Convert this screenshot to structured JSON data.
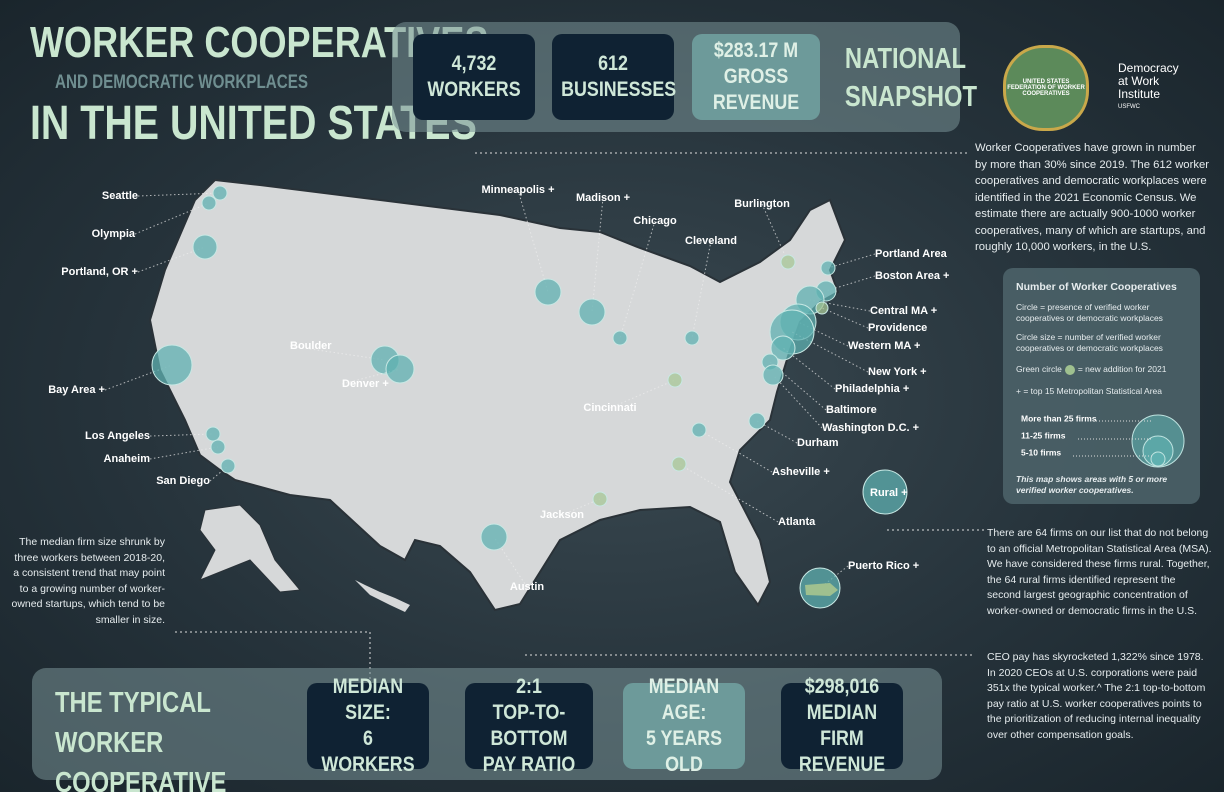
{
  "title": {
    "line1": "WORKER COOPERATIVES",
    "line2": "AND DEMOCRATIC WORKPLACES",
    "line3": "IN THE UNITED STATES"
  },
  "national_snapshot": {
    "stats": [
      {
        "value": "4,732",
        "label": "WORKERS"
      },
      {
        "value": "612",
        "label": "BUSINESSES"
      },
      {
        "value": "$283.17 M",
        "label": "GROSS REVENUE"
      }
    ],
    "heading": "NATIONAL SNAPSHOT"
  },
  "logos": {
    "federation": "UNITED STATES FEDERATION OF WORKER COOPERATIVES",
    "institute": "Democracy at Work Institute",
    "institute_sub": "USFWC"
  },
  "intro_text": "Worker Cooperatives have grown in number by more than 30% since 2019. The 612 worker cooperatives and democratic workplaces were identified in the 2021 Economic Census. We estimate there are actually 900-1000 worker cooperatives, many of which are startups, and roughly 10,000 workers, in the U.S.",
  "legend": {
    "title": "Number of Worker Cooperatives",
    "circle": "Circle = presence of verified worker cooperatives or democratic workplaces",
    "circle_size": "Circle size = number of verified worker cooperatives or democratic workplaces",
    "green_a": "Green circle",
    "green_b": "= new addition for 2021",
    "plus": "+ = top 15 Metropolitan Statistical Area",
    "sizes": [
      "More than 25 firms",
      "11-25 firms",
      "5-10 firms"
    ],
    "note": "This map shows areas with 5 or more verified worker cooperatives."
  },
  "cities": [
    "Seattle",
    "Olympia",
    "Portland, OR +",
    "Bay Area +",
    "Los Angeles",
    "Anaheim",
    "San Diego",
    "Boulder",
    "Denver +",
    "Minneapolis +",
    "Madison +",
    "Chicago",
    "Cleveland",
    "Burlington",
    "Portland Area",
    "Boston Area +",
    "Central MA +",
    "Providence",
    "Western MA +",
    "New York +",
    "Philadelphia +",
    "Baltimore",
    "Washington D.C. +",
    "Durham",
    "Asheville +",
    "Atlanta",
    "Cincinnati",
    "Jackson",
    "Austin",
    "Rural +",
    "Puerto Rico +"
  ],
  "notes": {
    "median": "The median firm size shrunk by three workers between 2018-20, a consistent trend that may point to a growing number of worker-owned startups, which tend to be smaller in size.",
    "rural": "There are 64 firms on our list that do not belong to an official Metropolitan Statistical Area (MSA). We have considered these firms rural. Together, the 64 rural firms identified represent the second largest geographic concentration of  worker-owned or democratic firms in the U.S.",
    "ceo": "CEO pay has skyrocketed 1,322% since 1978. In 2020 CEOs at U.S. corporations were paid 351x the typical worker.^ The 2:1 top-to-bottom pay ratio at U.S. worker cooperatives points to the prioritization of reducing internal inequality over other compensation goals."
  },
  "typical": {
    "heading": "THE TYPICAL WORKER COOPERATIVE",
    "stats": [
      {
        "value": "MEDIAN SIZE:",
        "label": "6 WORKERS"
      },
      {
        "value": "2:1",
        "label": "TOP-TO-BOTTOM PAY RATIO"
      },
      {
        "value": "MEDIAN AGE:",
        "label": "5 YEARS OLD"
      },
      {
        "value": "$298,016",
        "label": "MEDIAN FIRM REVENUE"
      }
    ]
  }
}
